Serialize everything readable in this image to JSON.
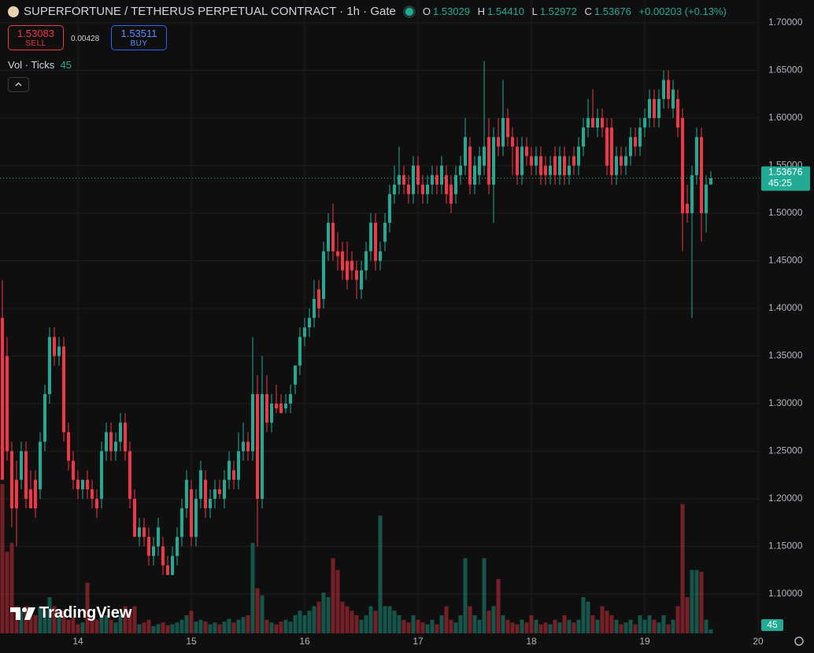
{
  "header": {
    "symbol": "SUPERFORTUNE / TETHERUS PERPETUAL CONTRACT · 1h · Gate",
    "ohlc": [
      {
        "label": "O",
        "value": "1.53029"
      },
      {
        "label": "H",
        "value": "1.54410"
      },
      {
        "label": "L",
        "value": "1.52972"
      },
      {
        "label": "C",
        "value": "1.53676"
      }
    ],
    "change": "+0.00203 (+0.13%)"
  },
  "trade": {
    "sell_price": "1.53083",
    "sell": "SELL",
    "spread": "0.00428",
    "buy_price": "1.53511",
    "buy": "BUY"
  },
  "indicator": {
    "name": "Vol · Ticks"
  },
  "countdown": "45:25",
  "brand": "TradingView",
  "chart_data": {
    "type": "candlestick",
    "categories": [
      null,
      null,
      null,
      null,
      null,
      null,
      null,
      null,
      null,
      null,
      null,
      null,
      null,
      null,
      null,
      null,
      "14",
      null,
      null,
      null,
      null,
      null,
      null,
      null,
      null,
      null,
      null,
      null,
      null,
      null,
      null,
      null,
      null,
      null,
      null,
      null,
      null,
      null,
      null,
      null,
      "15",
      null,
      null,
      null,
      null,
      null,
      null,
      null,
      null,
      null,
      null,
      null,
      null,
      null,
      null,
      null,
      null,
      null,
      null,
      null,
      null,
      null,
      null,
      null,
      "16",
      null,
      null,
      null,
      null,
      null,
      null,
      null,
      null,
      null,
      null,
      null,
      null,
      null,
      null,
      null,
      null,
      null,
      null,
      null,
      null,
      null,
      null,
      null,
      "17",
      null,
      null,
      null,
      null,
      null,
      null,
      null,
      null,
      null,
      null,
      null,
      null,
      null,
      null,
      null,
      null,
      null,
      null,
      null,
      null,
      null,
      null,
      null,
      "18",
      null,
      null,
      null,
      null,
      null,
      null,
      null,
      null,
      null,
      null,
      null,
      null,
      null,
      null,
      null,
      null,
      null,
      null,
      null,
      null,
      null,
      null,
      null,
      "19",
      null,
      null,
      null,
      null,
      null,
      null,
      null,
      null,
      null,
      null,
      null,
      null,
      null,
      null,
      null,
      null,
      null,
      null,
      null,
      null,
      null,
      null,
      null,
      "20"
    ],
    "open": [
      1.39,
      1.35,
      1.25,
      1.22,
      1.22,
      1.25,
      1.21,
      1.22,
      1.21,
      1.26,
      1.31,
      1.37,
      1.35,
      1.36,
      1.27,
      1.24,
      1.22,
      1.21,
      1.22,
      1.21,
      1.2,
      1.2,
      1.25,
      1.27,
      1.25,
      1.26,
      1.28,
      1.25,
      1.2,
      1.16,
      1.17,
      1.16,
      1.14,
      1.15,
      1.15,
      1.13,
      1.12,
      1.14,
      1.16,
      1.19,
      1.21,
      1.16,
      1.2,
      1.22,
      1.19,
      1.2,
      1.21,
      1.2,
      1.22,
      1.23,
      1.22,
      1.25,
      1.26,
      1.25,
      1.31,
      1.2,
      1.31,
      1.28,
      1.3,
      1.3,
      1.295,
      1.3,
      1.32,
      1.34,
      1.37,
      1.38,
      1.39,
      1.42,
      1.41,
      1.46,
      1.49,
      1.46,
      1.46,
      1.45,
      1.45,
      1.44,
      1.42,
      1.44,
      1.46,
      1.49,
      1.45,
      1.47,
      1.49,
      1.52,
      1.53,
      1.54,
      1.53,
      1.52,
      1.55,
      1.53,
      1.52,
      1.53,
      1.54,
      1.53,
      1.54,
      1.53,
      1.52,
      1.54,
      1.55,
      1.57,
      1.53,
      1.54,
      1.55,
      1.58,
      1.53,
      1.58,
      1.57,
      1.6,
      1.58,
      1.57,
      1.54,
      1.57,
      1.56,
      1.55,
      1.56,
      1.55,
      1.54,
      1.56,
      1.54,
      1.56,
      1.54,
      1.56,
      1.55,
      1.57,
      1.59,
      1.6,
      1.59,
      1.6,
      1.59,
      1.59,
      1.54,
      1.56,
      1.55,
      1.56,
      1.58,
      1.57,
      1.59,
      1.6,
      1.62,
      1.6,
      1.62,
      1.64,
      1.61,
      1.62,
      1.6,
      1.51,
      1.5,
      1.54,
      1.58,
      1.5,
      1.53029,
      null,
      null,
      null,
      null,
      null,
      null,
      null,
      null,
      null,
      null
    ],
    "high": [
      1.43,
      1.37,
      1.26,
      1.24,
      1.26,
      1.26,
      1.23,
      1.23,
      1.27,
      1.32,
      1.38,
      1.38,
      1.37,
      1.37,
      1.28,
      1.25,
      1.23,
      1.22,
      1.23,
      1.22,
      1.21,
      1.26,
      1.28,
      1.28,
      1.27,
      1.29,
      1.29,
      1.26,
      1.21,
      1.18,
      1.18,
      1.17,
      1.16,
      1.18,
      1.16,
      1.14,
      1.15,
      1.17,
      1.2,
      1.23,
      1.22,
      1.21,
      1.24,
      1.23,
      1.21,
      1.22,
      1.22,
      1.23,
      1.25,
      1.24,
      1.27,
      1.28,
      1.27,
      1.37,
      1.33,
      1.35,
      1.33,
      1.31,
      1.32,
      1.31,
      1.31,
      1.32,
      1.34,
      1.38,
      1.39,
      1.4,
      1.43,
      1.43,
      1.47,
      1.5,
      1.51,
      1.48,
      1.47,
      1.47,
      1.46,
      1.45,
      1.45,
      1.47,
      1.5,
      1.5,
      1.47,
      1.5,
      1.53,
      1.55,
      1.57,
      1.55,
      1.54,
      1.56,
      1.56,
      1.54,
      1.54,
      1.55,
      1.55,
      1.56,
      1.55,
      1.54,
      1.55,
      1.56,
      1.6,
      1.58,
      1.56,
      1.57,
      1.66,
      1.6,
      1.59,
      1.6,
      1.64,
      1.61,
      1.59,
      1.58,
      1.58,
      1.58,
      1.57,
      1.57,
      1.57,
      1.56,
      1.56,
      1.57,
      1.57,
      1.57,
      1.56,
      1.57,
      1.58,
      1.6,
      1.62,
      1.63,
      1.61,
      1.61,
      1.6,
      1.6,
      1.57,
      1.57,
      1.57,
      1.59,
      1.59,
      1.6,
      1.61,
      1.63,
      1.63,
      1.63,
      1.65,
      1.65,
      1.64,
      1.63,
      1.61,
      1.53,
      1.55,
      1.59,
      1.59,
      1.54,
      1.5441,
      null,
      null,
      null,
      null,
      null,
      null,
      null,
      null,
      null,
      null
    ],
    "low": [
      1.22,
      1.24,
      1.17,
      1.15,
      1.21,
      1.19,
      1.19,
      1.18,
      1.2,
      1.25,
      1.3,
      1.34,
      1.34,
      1.26,
      1.23,
      1.21,
      1.2,
      1.2,
      1.2,
      1.19,
      1.18,
      1.19,
      1.24,
      1.24,
      1.24,
      1.25,
      1.24,
      1.19,
      1.16,
      1.15,
      1.15,
      1.13,
      1.13,
      1.14,
      1.12,
      1.12,
      1.12,
      1.13,
      1.15,
      1.18,
      1.15,
      1.15,
      1.19,
      1.18,
      1.18,
      1.19,
      1.2,
      1.19,
      1.21,
      1.21,
      1.21,
      1.24,
      1.24,
      1.24,
      1.15,
      1.19,
      1.27,
      1.27,
      1.29,
      1.29,
      1.29,
      1.29,
      1.31,
      1.33,
      1.36,
      1.37,
      1.38,
      1.39,
      1.4,
      1.45,
      1.45,
      1.44,
      1.43,
      1.42,
      1.43,
      1.41,
      1.41,
      1.43,
      1.45,
      1.44,
      1.44,
      1.46,
      1.48,
      1.51,
      1.52,
      1.52,
      1.51,
      1.51,
      1.52,
      1.51,
      1.51,
      1.52,
      1.52,
      1.52,
      1.51,
      1.5,
      1.51,
      1.53,
      1.54,
      1.52,
      1.52,
      1.53,
      1.54,
      1.52,
      1.49,
      1.56,
      1.56,
      1.57,
      1.54,
      1.53,
      1.53,
      1.55,
      1.54,
      1.54,
      1.53,
      1.53,
      1.53,
      1.53,
      1.53,
      1.53,
      1.53,
      1.54,
      1.54,
      1.56,
      1.58,
      1.59,
      1.58,
      1.58,
      1.54,
      1.53,
      1.53,
      1.54,
      1.54,
      1.55,
      1.56,
      1.56,
      1.58,
      1.59,
      1.59,
      1.59,
      1.61,
      1.61,
      1.6,
      1.58,
      1.46,
      1.49,
      1.39,
      1.53,
      1.47,
      1.48,
      1.52972,
      null,
      null,
      null,
      null,
      null,
      null,
      null,
      null,
      null,
      null
    ],
    "close": [
      1.22,
      1.25,
      1.19,
      1.19,
      1.25,
      1.2,
      1.19,
      1.19,
      1.26,
      1.31,
      1.37,
      1.35,
      1.36,
      1.27,
      1.24,
      1.22,
      1.21,
      1.22,
      1.21,
      1.2,
      1.19,
      1.25,
      1.27,
      1.25,
      1.26,
      1.28,
      1.25,
      1.2,
      1.16,
      1.17,
      1.16,
      1.14,
      1.15,
      1.17,
      1.13,
      1.12,
      1.14,
      1.16,
      1.19,
      1.22,
      1.16,
      1.2,
      1.23,
      1.19,
      1.2,
      1.21,
      1.205,
      1.22,
      1.24,
      1.22,
      1.25,
      1.26,
      1.25,
      1.31,
      1.2,
      1.31,
      1.28,
      1.3,
      1.295,
      1.29,
      1.3,
      1.31,
      1.34,
      1.37,
      1.38,
      1.39,
      1.41,
      1.4,
      1.46,
      1.49,
      1.46,
      1.455,
      1.44,
      1.43,
      1.44,
      1.43,
      1.44,
      1.46,
      1.49,
      1.45,
      1.46,
      1.49,
      1.52,
      1.53,
      1.54,
      1.53,
      1.52,
      1.55,
      1.53,
      1.52,
      1.53,
      1.54,
      1.53,
      1.55,
      1.52,
      1.51,
      1.54,
      1.55,
      1.58,
      1.53,
      1.55,
      1.56,
      1.57,
      1.53,
      1.58,
      1.57,
      1.6,
      1.58,
      1.57,
      1.54,
      1.57,
      1.56,
      1.55,
      1.56,
      1.54,
      1.54,
      1.55,
      1.54,
      1.56,
      1.54,
      1.55,
      1.55,
      1.57,
      1.59,
      1.6,
      1.59,
      1.6,
      1.59,
      1.55,
      1.54,
      1.56,
      1.55,
      1.56,
      1.58,
      1.57,
      1.59,
      1.6,
      1.62,
      1.6,
      1.62,
      1.64,
      1.62,
      1.63,
      1.59,
      1.5,
      1.5,
      1.54,
      1.58,
      1.5,
      1.53,
      1.53676,
      null,
      null,
      null,
      null,
      null,
      null,
      null,
      null,
      null,
      null
    ],
    "volume": [
      1650,
      900,
      1000,
      300,
      250,
      300,
      250,
      200,
      300,
      250,
      400,
      300,
      200,
      250,
      150,
      180,
      100,
      120,
      560,
      200,
      150,
      180,
      200,
      150,
      120,
      200,
      300,
      250,
      300,
      100,
      120,
      150,
      80,
      100,
      120,
      90,
      100,
      120,
      150,
      200,
      250,
      130,
      150,
      130,
      100,
      120,
      100,
      130,
      160,
      120,
      150,
      180,
      200,
      1000,
      500,
      420,
      150,
      120,
      100,
      130,
      150,
      130,
      200,
      250,
      200,
      250,
      300,
      350,
      450,
      400,
      830,
      700,
      350,
      300,
      250,
      200,
      150,
      200,
      300,
      250,
      1300,
      300,
      300,
      250,
      200,
      150,
      120,
      200,
      150,
      120,
      100,
      150,
      100,
      200,
      300,
      150,
      120,
      200,
      830,
      300,
      200,
      150,
      830,
      250,
      300,
      600,
      200,
      150,
      120,
      100,
      150,
      120,
      200,
      150,
      100,
      120,
      100,
      150,
      120,
      200,
      150,
      120,
      150,
      400,
      350,
      200,
      150,
      300,
      250,
      200,
      150,
      100,
      120,
      150,
      100,
      200,
      150,
      200,
      150,
      120,
      200,
      100,
      150,
      300,
      1430,
      400,
      700,
      700,
      680,
      150,
      45,
      null,
      null,
      null,
      null,
      null,
      null,
      null,
      null,
      null,
      null
    ],
    "ylim": [
      1.0587,
      1.724
    ],
    "yticks": [
      {
        "value": 1.1,
        "label": "1.10000"
      },
      {
        "value": 1.15,
        "label": "1.15000"
      },
      {
        "value": 1.2,
        "label": "1.20000"
      },
      {
        "value": 1.25,
        "label": "1.25000"
      },
      {
        "value": 1.3,
        "label": "1.30000"
      },
      {
        "value": 1.35,
        "label": "1.35000"
      },
      {
        "value": 1.4,
        "label": "1.40000"
      },
      {
        "value": 1.45,
        "label": "1.45000"
      },
      {
        "value": 1.5,
        "label": "1.50000"
      },
      {
        "value": 1.55,
        "label": "1.55000"
      },
      {
        "value": 1.6,
        "label": "1.60000"
      },
      {
        "value": 1.65,
        "label": "1.65000"
      },
      {
        "value": 1.7,
        "label": "1.70000"
      }
    ],
    "vlim": [
      0,
      2000
    ],
    "up_color": "#22ab94",
    "down_color": "#f23645",
    "grid": true
  }
}
